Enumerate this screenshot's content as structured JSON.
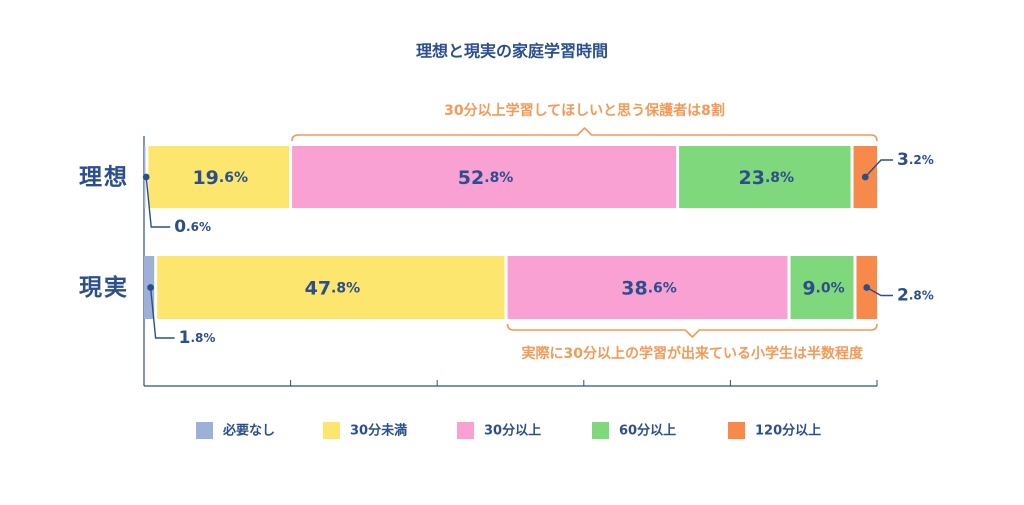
{
  "chart_data": {
    "type": "bar",
    "orientation": "horizontal",
    "stacked": true,
    "title": "理想と現実の家庭学習時間",
    "categories": [
      "理想",
      "現実"
    ],
    "xlim": [
      0,
      100
    ],
    "grid": false,
    "legend_position": "bottom",
    "series": [
      {
        "name": "必要なし",
        "color": "#9db0d8",
        "values": [
          0.6,
          1.8
        ],
        "labels": [
          {
            "int": "0",
            "dec": ".6%"
          },
          {
            "int": "1",
            "dec": ".8%"
          }
        ]
      },
      {
        "name": "30分未満",
        "color": "#fce66e",
        "values": [
          19.6,
          47.8
        ],
        "labels": [
          {
            "int": "19",
            "dec": ".6%"
          },
          {
            "int": "47",
            "dec": ".8%"
          }
        ]
      },
      {
        "name": "30分以上",
        "color": "#f9a1d2",
        "values": [
          52.8,
          38.6
        ],
        "labels": [
          {
            "int": "52",
            "dec": ".8%"
          },
          {
            "int": "38",
            "dec": ".6%"
          }
        ]
      },
      {
        "name": "60分以上",
        "color": "#7fd97c",
        "values": [
          23.8,
          9.0
        ],
        "labels": [
          {
            "int": "23",
            "dec": ".8%"
          },
          {
            "int": "9",
            "dec": ".0%"
          }
        ]
      },
      {
        "name": "120分以上",
        "color": "#f7894a",
        "values": [
          3.2,
          2.8
        ],
        "labels": [
          {
            "int": "3",
            "dec": ".2%"
          },
          {
            "int": "2",
            "dec": ".8%"
          }
        ]
      }
    ],
    "annotations": [
      {
        "text": "30分以上学習してほしいと思う保護者は8割",
        "row": 0,
        "position": "above",
        "from_series": 2,
        "to_series": 4
      },
      {
        "text": "実際に30分以上の学習が出来ている小学生は半数程度",
        "row": 1,
        "position": "below",
        "from_series": 2,
        "to_series": 4
      }
    ],
    "colors": {
      "text": "#2b4f8d",
      "annotation": "#f39a58",
      "axis": "#2b4f8d"
    }
  }
}
